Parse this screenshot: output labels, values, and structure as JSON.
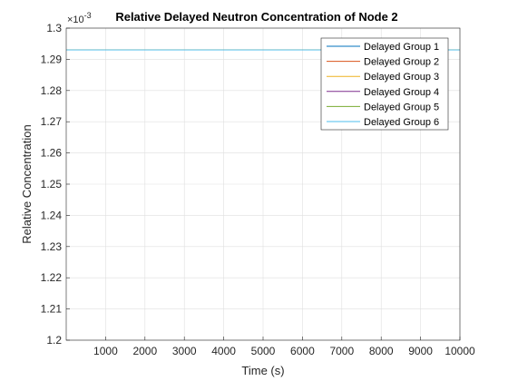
{
  "chart_data": {
    "type": "line",
    "title": "Relative Delayed Neutron Concentration of Node 2",
    "xlabel": "Time (s)",
    "ylabel": "Relative Concentration",
    "y_exponent_label": "×10",
    "y_exponent": "-3",
    "xlim": [
      0,
      10000
    ],
    "ylim": [
      1.2,
      1.3
    ],
    "x_ticks": [
      1000,
      2000,
      3000,
      4000,
      5000,
      6000,
      7000,
      8000,
      9000,
      10000
    ],
    "y_ticks": [
      1.2,
      1.21,
      1.22,
      1.23,
      1.24,
      1.25,
      1.26,
      1.27,
      1.28,
      1.29,
      1.3
    ],
    "grid": true,
    "legend_location": "top-right",
    "series": [
      {
        "name": "Delayed Group 1",
        "color": "#0072bd",
        "x": [
          0,
          10000
        ],
        "y": [
          1.293,
          1.293
        ]
      },
      {
        "name": "Delayed Group 2",
        "color": "#d95319",
        "x": [
          0,
          10000
        ],
        "y": [
          1.293,
          1.293
        ]
      },
      {
        "name": "Delayed Group 3",
        "color": "#edb120",
        "x": [
          0,
          10000
        ],
        "y": [
          1.293,
          1.293
        ]
      },
      {
        "name": "Delayed Group 4",
        "color": "#7e2f8e",
        "x": [
          0,
          10000
        ],
        "y": [
          1.293,
          1.293
        ]
      },
      {
        "name": "Delayed Group 5",
        "color": "#77ac30",
        "x": [
          0,
          10000
        ],
        "y": [
          1.293,
          1.293
        ]
      },
      {
        "name": "Delayed Group 6",
        "color": "#4dbeee",
        "x": [
          0,
          10000
        ],
        "y": [
          1.293,
          1.293
        ]
      }
    ]
  }
}
